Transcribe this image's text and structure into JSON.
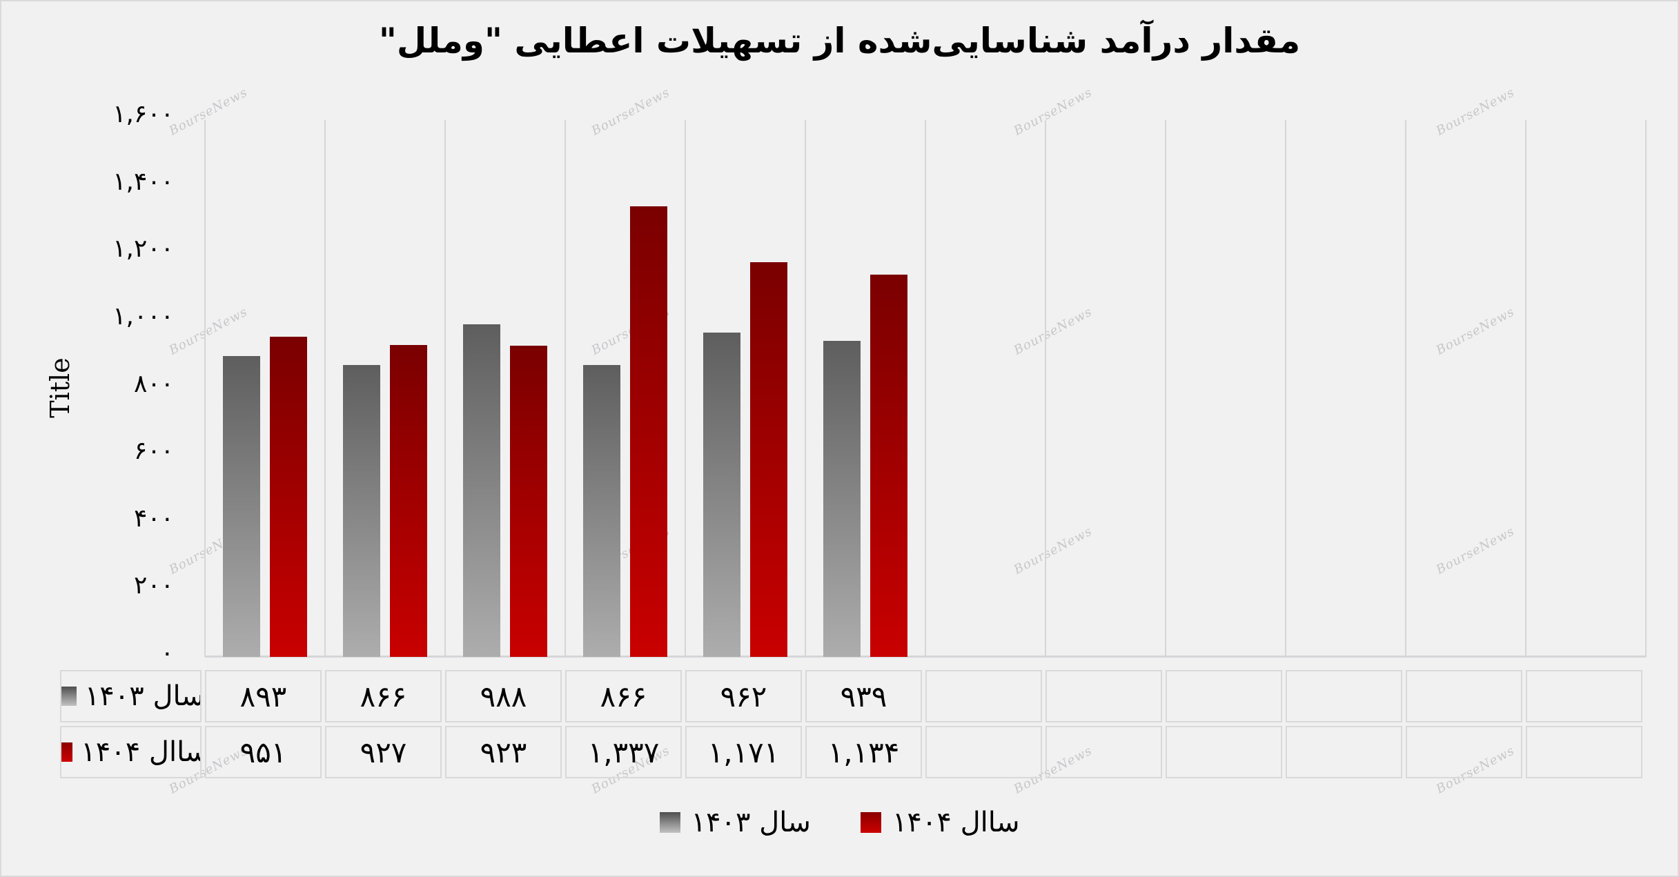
{
  "title": "مقدار درآمد شناسایی‌شده از تسهیلات اعطایی \"وملل\"",
  "y_axis_title": "Title",
  "watermark_text": "BourseNews",
  "y_axis": {
    "tick_labels": [
      "۱,۶۰۰",
      "۱,۴۰۰",
      "۱,۲۰۰",
      "۱,۰۰۰",
      "۸۰۰",
      "۶۰۰",
      "۴۰۰",
      "۲۰۰",
      "۰"
    ],
    "tick_values": [
      1600,
      1400,
      1200,
      1000,
      800,
      600,
      400,
      200,
      0
    ]
  },
  "legend": {
    "items": [
      {
        "label": "سال ۱۴۰۳",
        "series_key": "year-1403",
        "color_key": "gray"
      },
      {
        "label": "ساال ۱۴۰۴",
        "series_key": "year-1404",
        "color_key": "red"
      }
    ]
  },
  "table": {
    "rows": [
      {
        "label": "سال ۱۴۰۳",
        "color_key": "gray",
        "values": [
          "۸۹۳",
          "۸۶۶",
          "۹۸۸",
          "۸۶۶",
          "۹۶۲",
          "۹۳۹",
          "",
          "",
          "",
          "",
          "",
          ""
        ]
      },
      {
        "label": "ساال ۱۴۰۴",
        "color_key": "red",
        "values": [
          "۹۵۱",
          "۹۲۷",
          "۹۲۳",
          "۱,۳۳۷",
          "۱,۱۷۱",
          "۱,۱۳۴",
          "",
          "",
          "",
          "",
          "",
          ""
        ]
      }
    ]
  },
  "chart_data": {
    "type": "bar",
    "title": "مقدار درآمد شناسایی‌شده از تسهیلات اعطایی \"وملل\"",
    "ylabel": "Title",
    "categories": [
      "",
      "",
      "",
      "",
      "",
      ""
    ],
    "series": [
      {
        "name": "سال ۱۴۰۳",
        "values": [
          893,
          866,
          988,
          866,
          962,
          939
        ],
        "color": "#6a6a6a"
      },
      {
        "name": "ساال ۱۴۰۴",
        "values": [
          951,
          927,
          923,
          1337,
          1171,
          1134
        ],
        "color": "#b30000"
      }
    ],
    "ylim": [
      0,
      1600
    ],
    "y_tick_step": 200,
    "grid": "vertical-only",
    "total_grid_columns": 12,
    "legend_position": "bottom",
    "number_format": "persian-digits"
  },
  "colors": {
    "background": "#f1f1f2",
    "gridline": "#d6d6d8",
    "table_border": "#d9d9da",
    "text": "#000000",
    "watermark": "#c7c7c9",
    "gray_bar_top": "#5e5e5e",
    "gray_bar_bottom": "#adadad",
    "red_bar_top": "#7a0000",
    "red_bar_bottom": "#c90000"
  }
}
